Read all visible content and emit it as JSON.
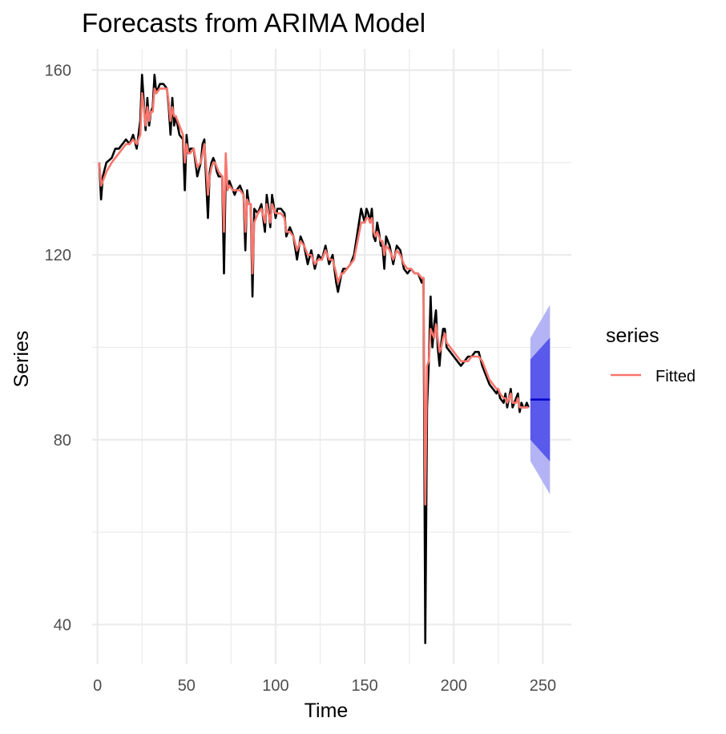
{
  "chart_data": {
    "type": "line",
    "title": "Forecasts from ARIMA Model",
    "xlabel": "Time",
    "ylabel": "Series",
    "xlim": [
      -3,
      266
    ],
    "ylim": [
      31.4,
      164.6
    ],
    "x_ticks": [
      0,
      50,
      100,
      150,
      200,
      250
    ],
    "y_ticks": [
      40,
      80,
      120,
      160
    ],
    "grid": true,
    "legend": {
      "position": "right",
      "title": "series",
      "entries": [
        "Fitted"
      ]
    },
    "colors": {
      "observed": "#000000",
      "fitted": "#F8766D",
      "forecast": "#0000CC",
      "pi80": "#5959EB",
      "pi95": "#B3B3F5",
      "grid": "#EBEBEB"
    },
    "observed": {
      "x": [
        1,
        2,
        3,
        5,
        8,
        10,
        12,
        14,
        16,
        18,
        20,
        22,
        24,
        25,
        26,
        27,
        28,
        29,
        30,
        31,
        32,
        33,
        35,
        37,
        39,
        40,
        41,
        42,
        43,
        44,
        46,
        48,
        49,
        50,
        51,
        52,
        54,
        55,
        56,
        58,
        59,
        60,
        61,
        62,
        63,
        64,
        65,
        66,
        67,
        68,
        70,
        71,
        72,
        73,
        74,
        76,
        77,
        78,
        80,
        82,
        83,
        84,
        85,
        86,
        87,
        88,
        90,
        92,
        94,
        95,
        96,
        97,
        98,
        100,
        101,
        103,
        105,
        106,
        108,
        110,
        112,
        114,
        116,
        118,
        120,
        122,
        124,
        126,
        128,
        130,
        132,
        134,
        135,
        136,
        137,
        138,
        140,
        142,
        144,
        146,
        148,
        150,
        151,
        152,
        153,
        154,
        155,
        156,
        157,
        158,
        159,
        160,
        161,
        162,
        164,
        166,
        168,
        170,
        172,
        174,
        176,
        178,
        180,
        182,
        183,
        184,
        185,
        186,
        187,
        188,
        189,
        190,
        191,
        192,
        193,
        194,
        195,
        196,
        198,
        200,
        202,
        204,
        206,
        208,
        210,
        212,
        214,
        216,
        218,
        220,
        222,
        224,
        225,
        226,
        228,
        229,
        230,
        231,
        232,
        233,
        234,
        235,
        236,
        237,
        238,
        239,
        240,
        241,
        242
      ],
      "y": [
        140,
        132,
        137,
        140,
        141,
        143,
        143,
        144,
        145,
        144,
        146,
        143,
        149,
        159,
        153,
        147,
        154,
        148,
        151,
        152,
        159,
        155,
        157,
        157,
        156,
        152,
        146,
        154,
        148,
        150,
        146,
        145,
        134,
        146,
        142,
        143,
        143,
        140,
        137,
        140,
        144,
        145,
        136,
        128,
        138,
        140,
        141,
        140,
        138,
        137,
        137,
        116,
        138,
        135,
        136,
        134,
        133,
        134,
        135,
        133,
        121,
        134,
        131,
        131,
        111,
        130,
        129,
        131,
        125,
        133,
        130,
        126,
        133,
        128,
        130,
        130,
        129,
        124,
        126,
        124,
        119,
        124,
        122,
        118,
        121,
        117,
        120,
        119,
        122,
        118,
        120,
        114,
        112,
        114,
        116,
        117,
        117,
        118,
        120,
        125,
        130,
        127,
        130,
        129,
        127,
        130,
        124,
        123,
        127,
        125,
        122,
        122,
        117,
        124,
        122,
        118,
        122,
        121,
        117,
        116,
        117,
        116,
        116,
        114,
        115,
        36,
        87,
        97,
        111,
        100,
        105,
        108,
        100,
        96,
        101,
        104,
        104,
        100,
        99,
        98,
        97,
        96,
        97,
        98,
        98,
        99,
        99,
        96,
        94,
        92,
        91,
        90,
        91,
        89,
        88,
        90,
        87,
        89,
        91,
        87,
        88,
        89,
        90,
        86,
        88,
        87,
        87,
        88,
        87
      ]
    },
    "fitted": {
      "x": [
        1,
        2,
        3,
        5,
        8,
        10,
        12,
        14,
        16,
        18,
        20,
        22,
        24,
        25,
        26,
        27,
        28,
        29,
        30,
        31,
        32,
        33,
        35,
        37,
        39,
        40,
        41,
        42,
        43,
        44,
        46,
        48,
        49,
        50,
        51,
        52,
        54,
        55,
        56,
        58,
        59,
        60,
        61,
        62,
        63,
        64,
        65,
        66,
        67,
        68,
        70,
        71,
        72,
        73,
        74,
        76,
        77,
        78,
        80,
        82,
        83,
        84,
        85,
        86,
        87,
        88,
        90,
        92,
        94,
        95,
        96,
        97,
        98,
        100,
        101,
        103,
        105,
        106,
        108,
        110,
        112,
        114,
        116,
        118,
        120,
        122,
        124,
        126,
        128,
        130,
        132,
        134,
        135,
        136,
        137,
        138,
        140,
        142,
        144,
        146,
        148,
        150,
        151,
        152,
        153,
        154,
        155,
        156,
        157,
        158,
        159,
        160,
        161,
        162,
        164,
        166,
        168,
        170,
        172,
        174,
        176,
        178,
        180,
        182,
        183,
        184,
        185,
        186,
        187,
        188,
        189,
        190,
        191,
        192,
        193,
        194,
        195,
        196,
        198,
        200,
        202,
        204,
        206,
        208,
        210,
        212,
        214,
        216,
        218,
        220,
        222,
        224,
        225,
        226,
        228,
        229,
        230,
        231,
        232,
        233,
        234,
        235,
        236,
        237,
        238,
        239,
        240,
        241,
        242
      ],
      "y": [
        140,
        135,
        136,
        138,
        140,
        141,
        142,
        143,
        144,
        144,
        145,
        144,
        146,
        155,
        152,
        148,
        152,
        149,
        151,
        151,
        156,
        155,
        156,
        156,
        156,
        153,
        149,
        152,
        150,
        150,
        148,
        146,
        140,
        144,
        142,
        142,
        143,
        141,
        139,
        140,
        142,
        144,
        139,
        133,
        137,
        139,
        140,
        140,
        139,
        138,
        137,
        125,
        142,
        134,
        135,
        134,
        134,
        134,
        134,
        133,
        125,
        132,
        131,
        131,
        116,
        127,
        129,
        130,
        127,
        131,
        129,
        127,
        131,
        129,
        129,
        129,
        128,
        125,
        125,
        124,
        121,
        123,
        122,
        120,
        120,
        118,
        119,
        119,
        121,
        119,
        119,
        116,
        114,
        115,
        116,
        116,
        117,
        118,
        119,
        123,
        127,
        127,
        128,
        128,
        127,
        128,
        125,
        124,
        125,
        124,
        123,
        123,
        120,
        122,
        121,
        119,
        121,
        120,
        118,
        117,
        117,
        116,
        116,
        115,
        115,
        66,
        96,
        97,
        104,
        103,
        102,
        105,
        102,
        99,
        100,
        102,
        103,
        101,
        100,
        99,
        98,
        97,
        97,
        97,
        98,
        98,
        98,
        97,
        95,
        93,
        92,
        91,
        91,
        90,
        89,
        89,
        88,
        89,
        90,
        88,
        88,
        88,
        89,
        87,
        87,
        87,
        87,
        87,
        87
      ]
    },
    "forecast": {
      "x": [
        243,
        254
      ],
      "mean": [
        88.7,
        88.7
      ],
      "lo80": [
        80.0,
        75.3
      ],
      "hi80": [
        97.4,
        102.1
      ],
      "lo95": [
        75.4,
        68.2
      ],
      "hi95": [
        102.0,
        109.2
      ]
    }
  }
}
